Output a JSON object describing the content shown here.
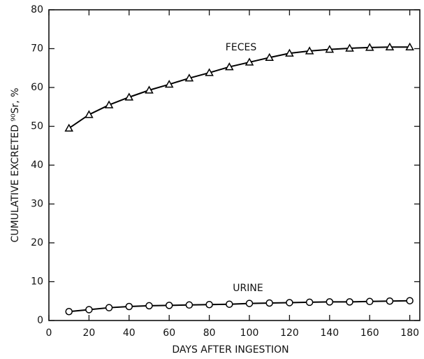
{
  "chart_data": {
    "type": "line",
    "x_label": "DAYS AFTER INGESTION",
    "y_label": "CUMULATIVE EXCRETED ⁹⁰Sr, %",
    "x": [
      10,
      20,
      30,
      40,
      50,
      60,
      70,
      80,
      90,
      100,
      110,
      120,
      130,
      140,
      150,
      160,
      170,
      180
    ],
    "series": [
      {
        "name": "FECES",
        "color": "#000000",
        "marker": "triangle",
        "values": [
          49.5,
          53,
          55.5,
          57.5,
          59.3,
          60.8,
          62.4,
          63.8,
          65.3,
          66.5,
          67.7,
          68.8,
          69.4,
          69.8,
          70.1,
          70.3,
          70.4,
          70.4
        ]
      },
      {
        "name": "URINE",
        "color": "#000000",
        "marker": "circle",
        "values": [
          2.3,
          2.8,
          3.3,
          3.6,
          3.8,
          3.9,
          4.0,
          4.1,
          4.2,
          4.4,
          4.5,
          4.6,
          4.7,
          4.8,
          4.8,
          4.9,
          5.0,
          5.1
        ]
      }
    ],
    "xlim": [
      0,
      185
    ],
    "xticks": [
      0,
      20,
      40,
      60,
      80,
      100,
      120,
      140,
      160,
      180
    ],
    "ylim": [
      0,
      80
    ],
    "yticks": [
      0,
      10,
      20,
      30,
      40,
      50,
      60,
      70,
      80
    ],
    "grid": false
  }
}
